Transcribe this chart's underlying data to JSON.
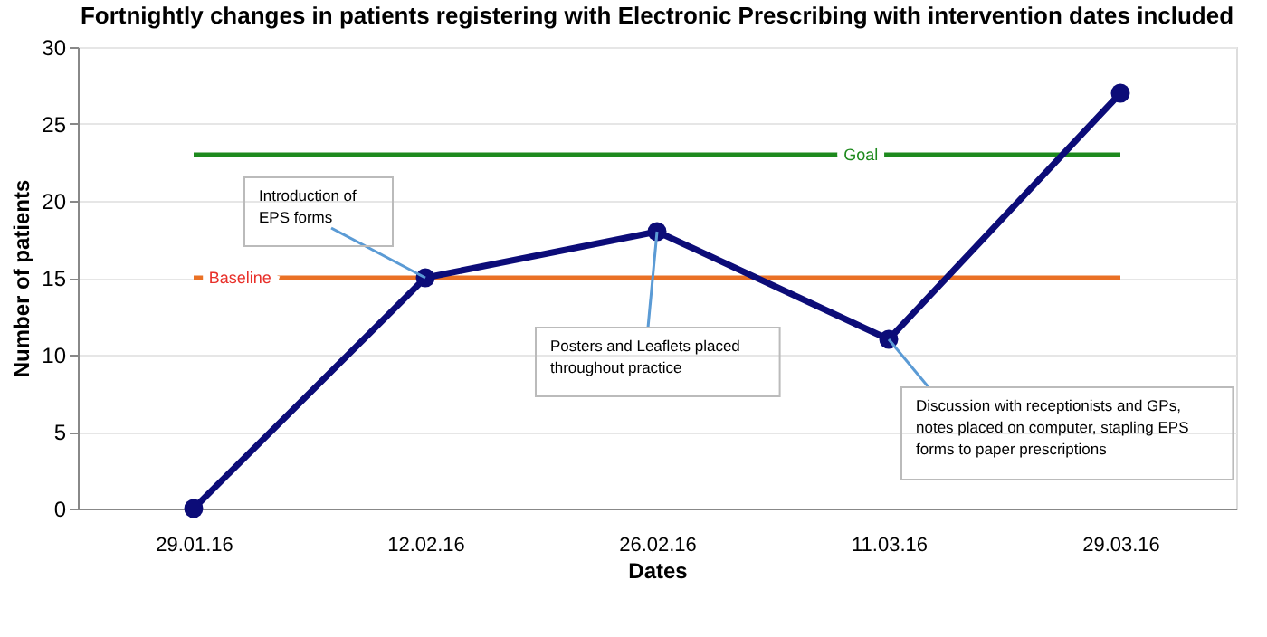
{
  "chart_data": {
    "type": "line",
    "title": "Fortnightly changes in patients registering with Electronic Prescribing with intervention dates included",
    "xlabel": "Dates",
    "ylabel": "Number of patients",
    "categories": [
      "29.01.16",
      "12.02.16",
      "26.02.16",
      "11.03.16",
      "29.03.16"
    ],
    "series": [
      {
        "color": "#0c0c78",
        "values": [
          0,
          15,
          18,
          11,
          27
        ]
      }
    ],
    "ylim": [
      0,
      30
    ],
    "yticks": [
      0,
      5,
      10,
      15,
      20,
      25,
      30
    ],
    "grid": "y",
    "marker": "circle",
    "line_style": "solid",
    "ref_lines": [
      {
        "axis": "y",
        "value": 23,
        "label": "Goal",
        "color": "#1e8a1e"
      },
      {
        "axis": "y",
        "value": 15,
        "label": "Baseline",
        "color": "#ea7125"
      }
    ],
    "annotations": [
      {
        "text": "Introduction of EPS forms",
        "x": "12.02.16",
        "y": 15
      },
      {
        "text": "Posters and Leaflets placed throughout practice",
        "x": "26.02.16",
        "y": 18
      },
      {
        "text": "Discussion with receptionists and GPs, notes placed on computer, stapling EPS forms to paper prescriptions",
        "x": "11.03.16",
        "y": 11
      }
    ]
  }
}
